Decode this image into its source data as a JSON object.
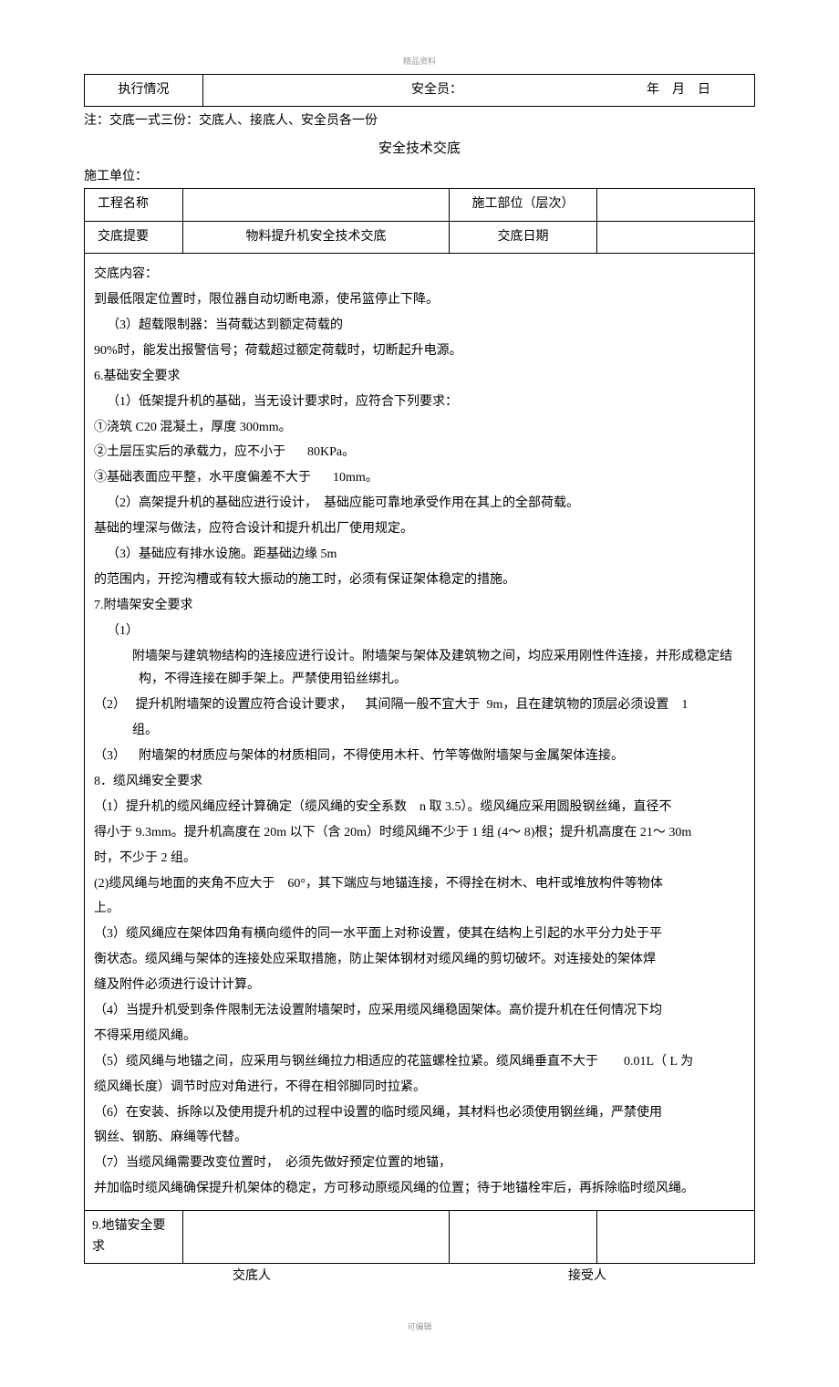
{
  "header_label": "精品资料",
  "exec_row": {
    "label": "执行情况",
    "safety_label": "安全员：",
    "date_parts": [
      "年",
      "月",
      "日"
    ]
  },
  "note": "注：交底一式三份：交底人、接底人、安全员各一份",
  "title": "安全技术交底",
  "org_label": "施工单位：",
  "info": {
    "project_label": "工程名称",
    "project_value": "",
    "location_label": "施工部位（层次）",
    "location_value": "",
    "summary_label": "交底提要",
    "summary_value": "物料提升机安全技术交底",
    "date_label": "交底日期",
    "date_value": ""
  },
  "content": {
    "heading": "交底内容：",
    "p1": "到最低限定位置时，限位器自动切断电源，使吊篮停止下降。",
    "p2a": "（3）超载限制器：当荷载达到额定荷载的",
    "p2b": "90%时，能发出报警信号；荷载超过额定荷载时，切断起升电源。",
    "s6": "6.基础安全要求",
    "s6_1a": "（1）低架提升机的基础，当无设计要求时，应符合下列要求：",
    "s6_1b": "①浇筑 C20 混凝土，厚度 300mm。",
    "s6_1c_a": "②土层压实后的承载力，应不小于",
    "s6_1c_b": "80KPa。",
    "s6_1d_a": "③基础表面应平整，水平度偏差不大于",
    "s6_1d_b": "10mm。",
    "s6_2a": "（2）高架提升机的基础应进行设计，",
    "s6_2b": "基础应能可靠地承受作用在其上的全部荷载。",
    "s6_2c": "基础的埋深与做法，应符合设计和提升机出厂使用规定。",
    "s6_3a": "（3）基础应有排水设施。距基础边缘 5m",
    "s6_3b": "的范围内，开挖沟槽或有较大振动的施工时，必须有保证架体稳定的措施。",
    "s7": "7.附墙架安全要求",
    "s7_1": "（1）",
    "s7_1a": "附墙架与建筑物结构的连接应进行设计。附墙架与架体及建筑物之间，均应采用刚性件连接，并形成稳定结构，不得连接在脚手架上。严禁使用铅丝绑扎。",
    "s7_2a": "（2）",
    "s7_2b": "提升机附墙架的设置应符合设计要求，",
    "s7_2c": "其间隔一般不宜大于",
    "s7_2d": "9m，且在建筑物的顶层必须设置",
    "s7_2e": "1",
    "s7_2f": "组。",
    "s7_3a": "（3）",
    "s7_3b": "附墙架的材质应与架体的材质相同，不得使用木杆、竹竿等做附墙架与金属架体连接。",
    "s8": "8．缆风绳安全要求",
    "s8_1a": "（1）提升机的缆风绳应经计算确定（缆风绳的安全系数",
    "s8_1b": "n 取 3.5）。缆风绳应采用圆股钢丝绳，直径不",
    "s8_1c": "得小于 9.3mm。提升机高度在 20m 以下（含 20m）时缆风绳不少于 1 组 (4～ 8)根；提升机高度在 21～ 30m",
    "s8_1d": "时，不少于 2 组。",
    "s8_2a": "(2)缆风绳与地面的夹角不应大于",
    "s8_2b": "60°，其下端应与地锚连接，不得拴在树木、电杆或堆放构件等物体",
    "s8_2c": "上。",
    "s8_3a": "（3）缆风绳应在架体四角有横向缆件的同一水平面上对称设置，使其在结构上引起的水平分力处于平",
    "s8_3b": "衡状态。缆风绳与架体的连接处应采取措施，防止架体钢材对缆风绳的剪切破坏。对连接处的架体焊",
    "s8_3c": "缝及附件必须进行设计计算。",
    "s8_4a": "（4）当提升机受到条件限制无法设置附墙架时，应采用缆风绳稳固架体。高价提升机在任何情况下均",
    "s8_4b": "不得采用缆风绳。",
    "s8_5a": "（5）缆风绳与地锚之间，应采用与钢丝绳拉力相适应的花篮螺栓拉紧。缆风绳垂直不大于",
    "s8_5b": "0.01L（ L 为",
    "s8_5c": "缆风绳长度）调节时应对角进行，不得在相邻脚同时拉紧。",
    "s8_6a": "（6）在安装、拆除以及使用提升机的过程中设置的临时缆风绳，其材料也必须使用钢丝绳，严禁使用",
    "s8_6b": "钢丝、钢筋、麻绳等代替。",
    "s8_7a": "（7）当缆风绳需要改变位置时，",
    "s8_7b": "必须先做好预定位置的地锚，",
    "s8_7c": "并加临时缆风绳确保提升机架体的稳定，方可移动原缆风绳的位置；待于地锚栓牢后，再拆除临时缆风绳。",
    "s9": "9.地锚安全要求"
  },
  "footer": {
    "sender": "交底人",
    "receiver": "接受人"
  },
  "footer_watermark": "可编辑"
}
